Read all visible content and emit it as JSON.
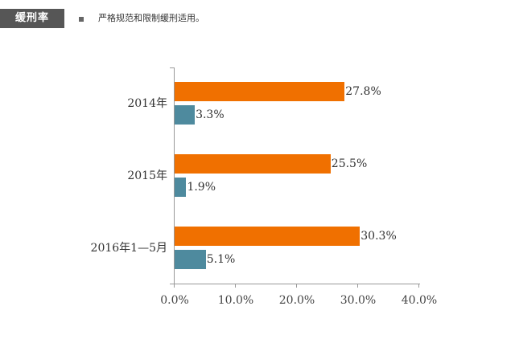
{
  "header": {
    "tag": "缓刑率",
    "subtitle": "严格规范和限制缓刑适用。"
  },
  "colors": {
    "series_a": "#f07000",
    "series_b": "#4e8a9e",
    "header_bg": "#565656"
  },
  "chart_data": {
    "type": "bar",
    "orientation": "horizontal",
    "title": "缓刑率",
    "subtitle": "严格规范和限制缓刑适用。",
    "categories": [
      "2014年",
      "2015年",
      "2016年1—5月"
    ],
    "series": [
      {
        "name": "series_orange",
        "color": "#f07000",
        "values": [
          27.8,
          25.5,
          30.3
        ]
      },
      {
        "name": "series_teal",
        "color": "#4e8a9e",
        "values": [
          3.3,
          1.9,
          5.1
        ]
      }
    ],
    "value_labels": {
      "series_orange": [
        "27.8%",
        "25.5%",
        "30.3%"
      ],
      "series_teal": [
        "3.3%",
        "1.9%",
        "5.1%"
      ]
    },
    "xlabel": "",
    "ylabel": "",
    "xlim": [
      0,
      40
    ],
    "x_ticks": [
      "0.0%",
      "10.0%",
      "20.0%",
      "30.0%",
      "40.0%"
    ],
    "grid": false,
    "legend": "none"
  }
}
